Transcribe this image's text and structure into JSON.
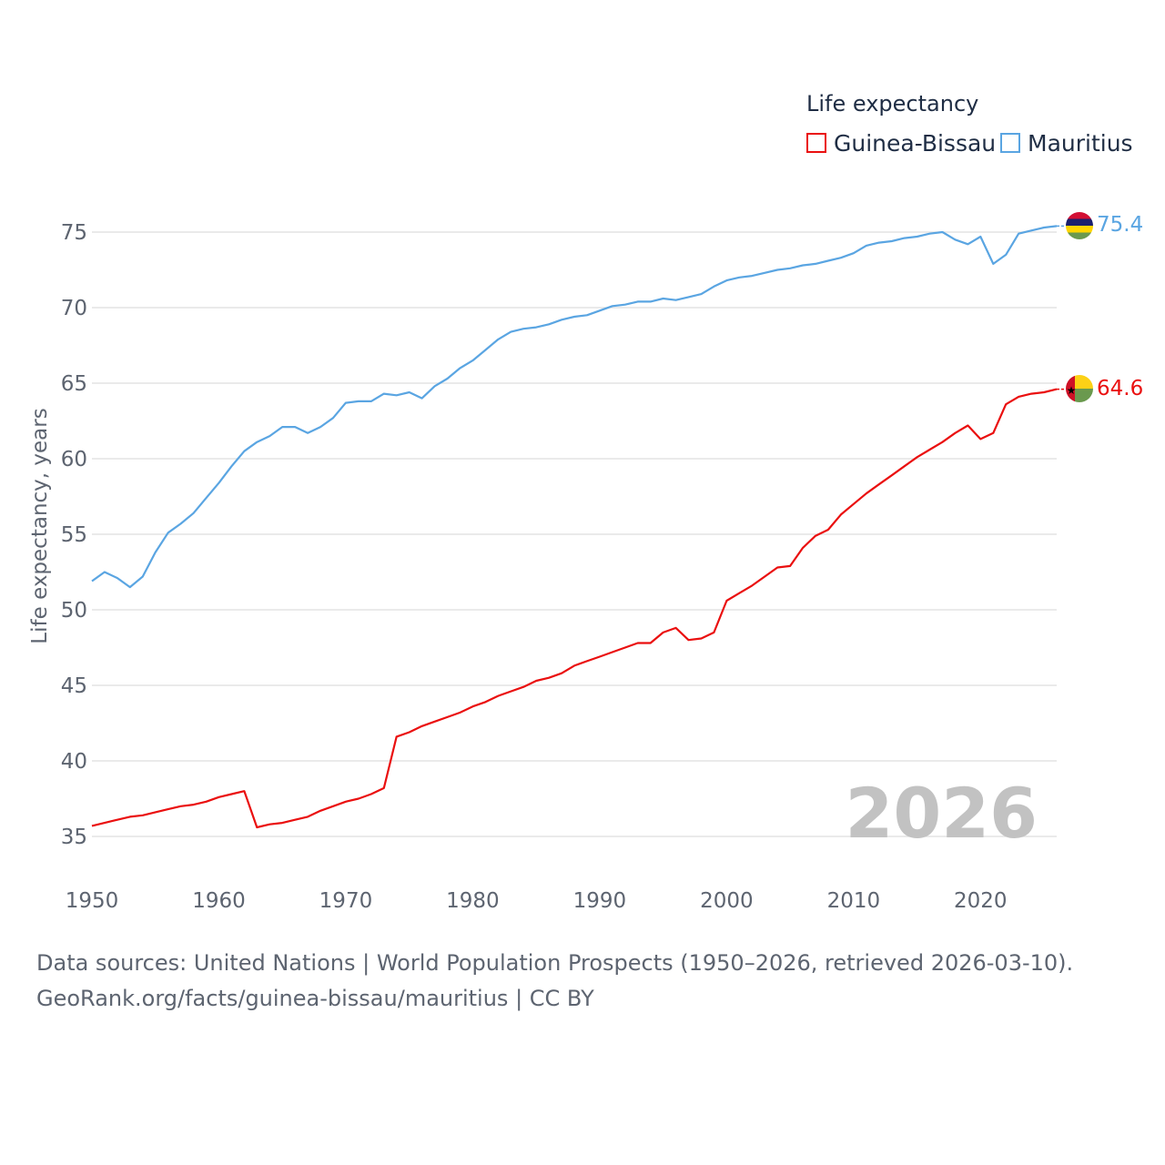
{
  "legend": {
    "title": "Life expectancy",
    "items": [
      {
        "label": "Guinea-Bissau",
        "color": "#ea0f0f"
      },
      {
        "label": "Mauritius",
        "color": "#5aa5e2"
      }
    ]
  },
  "footer": {
    "line1": "Data sources: United Nations | World Population Prospects (1950–2026, retrieved 2026-03-10).",
    "line2": "GeoRank.org/facts/guinea-bissau/mauritius | CC BY"
  },
  "chart_data": {
    "type": "line",
    "title": "Life expectancy",
    "xlabel": "",
    "ylabel": "Life expectancy, years",
    "year_label": "2026",
    "xlim": [
      1950,
      2026
    ],
    "ylim": [
      33,
      78
    ],
    "x_ticks": [
      1950,
      1960,
      1970,
      1980,
      1990,
      2000,
      2010,
      2020
    ],
    "y_ticks": [
      35,
      40,
      45,
      50,
      55,
      60,
      65,
      70,
      75
    ],
    "grid": true,
    "x": [
      1950,
      1951,
      1952,
      1953,
      1954,
      1955,
      1956,
      1957,
      1958,
      1959,
      1960,
      1961,
      1962,
      1963,
      1964,
      1965,
      1966,
      1967,
      1968,
      1969,
      1970,
      1971,
      1972,
      1973,
      1974,
      1975,
      1976,
      1977,
      1978,
      1979,
      1980,
      1981,
      1982,
      1983,
      1984,
      1985,
      1986,
      1987,
      1988,
      1989,
      1990,
      1991,
      1992,
      1993,
      1994,
      1995,
      1996,
      1997,
      1998,
      1999,
      2000,
      2001,
      2002,
      2003,
      2004,
      2005,
      2006,
      2007,
      2008,
      2009,
      2010,
      2011,
      2012,
      2013,
      2014,
      2015,
      2016,
      2017,
      2018,
      2019,
      2020,
      2021,
      2022,
      2023,
      2024,
      2025,
      2026
    ],
    "series": [
      {
        "name": "Guinea-Bissau",
        "color": "#ea0f0f",
        "end_label": "64.6",
        "values": [
          35.7,
          35.9,
          36.1,
          36.3,
          36.4,
          36.6,
          36.8,
          37.0,
          37.1,
          37.3,
          37.6,
          37.8,
          38.0,
          35.6,
          35.8,
          35.9,
          36.1,
          36.3,
          36.7,
          37.0,
          37.3,
          37.5,
          37.8,
          38.2,
          41.6,
          41.9,
          42.3,
          42.6,
          42.9,
          43.2,
          43.6,
          43.9,
          44.3,
          44.6,
          44.9,
          45.3,
          45.5,
          45.8,
          46.3,
          46.6,
          46.9,
          47.2,
          47.5,
          47.8,
          47.8,
          48.5,
          48.8,
          48.0,
          48.1,
          48.5,
          50.6,
          51.1,
          51.6,
          52.2,
          52.8,
          52.9,
          54.1,
          54.9,
          55.3,
          56.3,
          57.0,
          57.7,
          58.3,
          58.9,
          59.5,
          60.1,
          60.6,
          61.1,
          61.7,
          62.2,
          61.3,
          61.7,
          63.6,
          64.1,
          64.3,
          64.4,
          64.6
        ]
      },
      {
        "name": "Mauritius",
        "color": "#5aa5e2",
        "end_label": "75.4",
        "values": [
          51.9,
          52.5,
          52.1,
          51.5,
          52.2,
          53.8,
          55.1,
          55.7,
          56.4,
          57.4,
          58.4,
          59.5,
          60.5,
          61.1,
          61.5,
          62.1,
          62.1,
          61.7,
          62.1,
          62.7,
          63.7,
          63.8,
          63.8,
          64.3,
          64.2,
          64.4,
          64.0,
          64.8,
          65.3,
          66.0,
          66.5,
          67.2,
          67.9,
          68.4,
          68.6,
          68.7,
          68.9,
          69.2,
          69.4,
          69.5,
          69.8,
          70.1,
          70.2,
          70.4,
          70.4,
          70.6,
          70.5,
          70.7,
          70.9,
          71.4,
          71.8,
          72.0,
          72.1,
          72.3,
          72.5,
          72.6,
          72.8,
          72.9,
          73.1,
          73.3,
          73.6,
          74.1,
          74.3,
          74.4,
          74.6,
          74.7,
          74.9,
          75.0,
          74.5,
          74.2,
          74.7,
          72.9,
          73.5,
          74.9,
          75.1,
          75.3,
          75.4
        ]
      }
    ]
  }
}
